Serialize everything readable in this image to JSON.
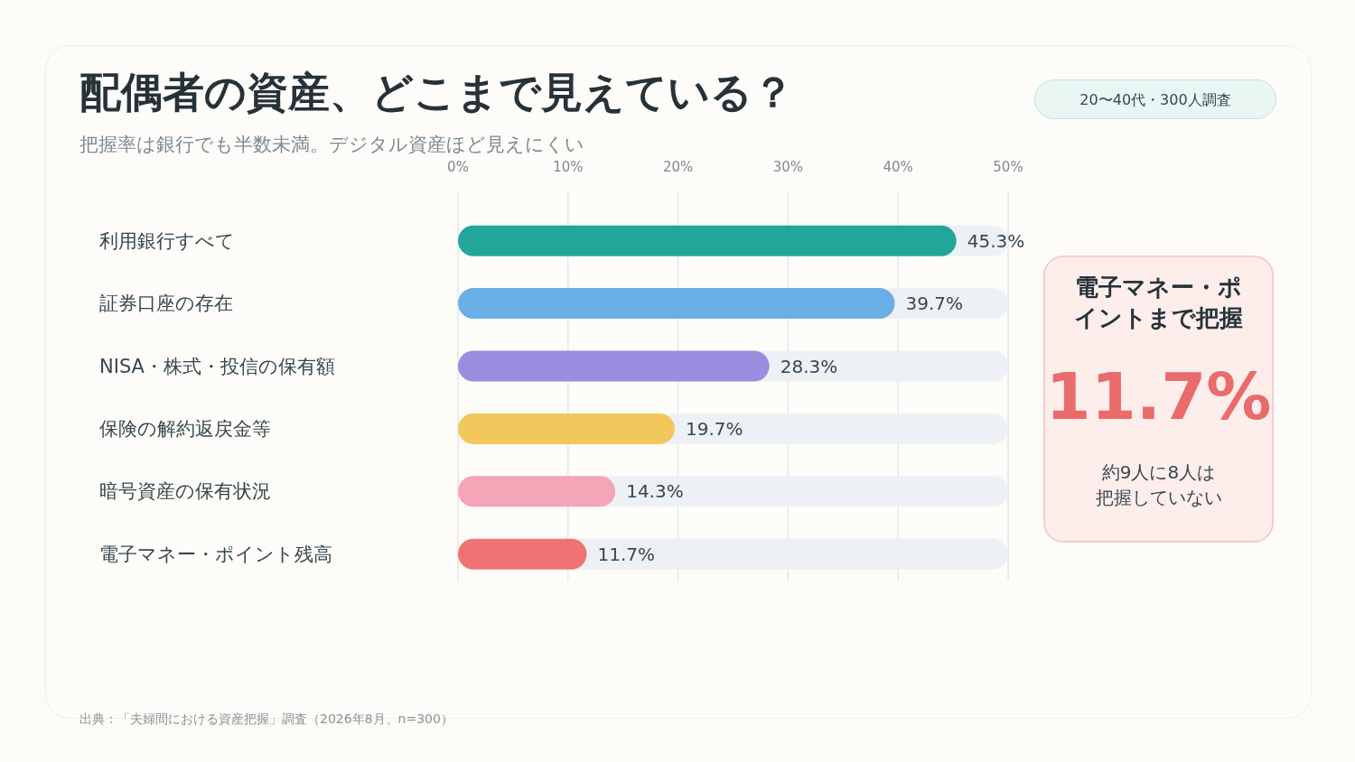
{
  "chart_data": [
    {
      "type": "bar",
      "orientation": "horizontal",
      "title": "配偶者の資産、どこまで見えている？",
      "subtitle": "把握率は銀行でも半数未満。デジタル資産ほど見えにくい",
      "categories": [
        "利用銀行すべて",
        "証券口座の存在",
        "NISA・株式・投信の保有額",
        "保険の解約返戻金等",
        "暗号資産の保有状況",
        "電子マネー・ポイント残高"
      ],
      "values": [
        45.3,
        39.7,
        28.3,
        19.7,
        14.3,
        11.7
      ],
      "colors": [
        "#22a699",
        "#6aaee6",
        "#9b8ee0",
        "#f2c75c",
        "#f5a5b8",
        "#ef7373"
      ],
      "value_labels": [
        "45.3%",
        "39.7%",
        "28.3%",
        "19.7%",
        "14.3%",
        "11.7%"
      ],
      "xlim": [
        0,
        50
      ],
      "xticks": [
        {
          "value": 0,
          "label": "0%"
        },
        {
          "value": 10,
          "label": "10%"
        },
        {
          "value": 20,
          "label": "20%"
        },
        {
          "value": 30,
          "label": "30%"
        },
        {
          "value": 40,
          "label": "40%"
        },
        {
          "value": 50,
          "label": "50%"
        }
      ],
      "grid": "x",
      "annotations": [
        "20〜40代・300人調査",
        "出典：「夫婦間における資産把握」調査（2026年8月、n=300）"
      ]
    },
    {
      "type": "other",
      "title": "電子マネー・ポイントまで把握",
      "annotations": [
        "11.7%",
        "約9人に8人は把握していない"
      ]
    }
  ]
}
